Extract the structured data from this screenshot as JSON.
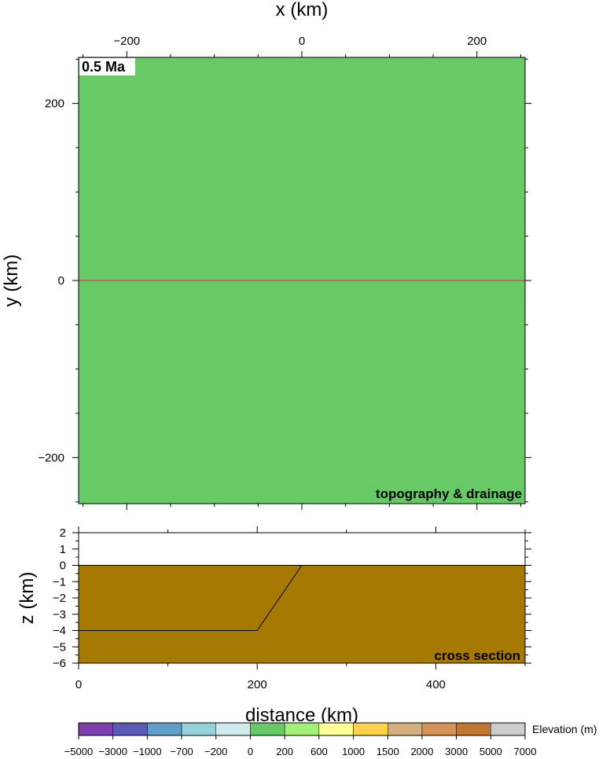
{
  "chart_data": [
    {
      "type": "heatmap",
      "title": "",
      "xlabel": "x (km)",
      "ylabel": "y (km)",
      "xlim": [
        -255,
        255
      ],
      "ylim": [
        -252,
        252
      ],
      "xticks": [
        -200,
        0,
        200
      ],
      "yticks": [
        -200,
        0,
        200
      ],
      "time_label": "0.5 Ma",
      "panel_label": "topography & drainage",
      "fill_color": "#66c966",
      "section_line": {
        "y": 0,
        "x": [
          -255,
          255
        ],
        "color": "#d9415a"
      }
    },
    {
      "type": "area",
      "title": "",
      "xlabel": "distance (km)",
      "ylabel": "z (km)",
      "xlim": [
        0,
        500
      ],
      "ylim": [
        -6,
        2
      ],
      "xticks": [
        0,
        200,
        400
      ],
      "yticks": [
        2,
        1,
        0,
        -1,
        -2,
        -3,
        -4,
        -5,
        -6
      ],
      "panel_label": "cross section",
      "surface": {
        "x": [
          0,
          500
        ],
        "y": [
          0,
          0
        ],
        "color": "#a67a02"
      },
      "layer": {
        "x": [
          0,
          200,
          250,
          500
        ],
        "y": [
          -4,
          -4,
          0,
          0
        ]
      }
    }
  ],
  "colorbar": {
    "label": "Elevation (m)",
    "ticks": [
      "-5000",
      "-3000",
      "-1000",
      "-700",
      "-200",
      "0",
      "200",
      "600",
      "1000",
      "1500",
      "2000",
      "3000",
      "5000",
      "7000"
    ],
    "colors": [
      "#7f3fae",
      "#5a5ab4",
      "#5e9ec8",
      "#96d1dc",
      "#cdebeb",
      "#66c966",
      "#a0f07a",
      "#ffff96",
      "#ffd24b",
      "#d1b07e",
      "#d49254",
      "#c0762e",
      "#cccccc"
    ]
  }
}
